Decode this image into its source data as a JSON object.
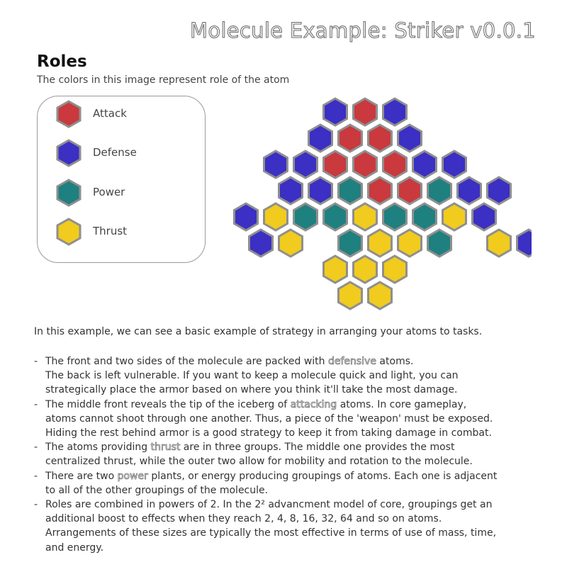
{
  "title": "Molecule Example: Striker v0.0.1",
  "roles": {
    "heading": "Roles",
    "subtitle": "The colors in this image represent role of the atom",
    "legend": [
      {
        "label": "Attack",
        "color": "#c9393d"
      },
      {
        "label": "Defense",
        "color": "#3b2fc4"
      },
      {
        "label": "Power",
        "color": "#1f8080"
      },
      {
        "label": "Thrust",
        "color": "#f1cb1d"
      }
    ]
  },
  "hex_border": "#8f8f8f",
  "molecule": {
    "rows": [
      "...DAD....",
      "..DAAD....",
      ".DDAAADD..",
      ".DDPAAPDD.",
      "DTPPTPPTD.",
      "DT.PTTP.TD",
      "...TTT....",
      "...TT....."
    ]
  },
  "intro": "In this example, we can see a basic example of strategy in arranging your atoms to tasks.",
  "bullets": [
    {
      "lines": [
        [
          {
            "t": "The front and two sides of the molecule are packed with "
          },
          {
            "t": "defensive",
            "hl": true
          },
          {
            "t": " atoms."
          }
        ],
        [
          {
            "t": "The back is left vulnerable.  If you want to keep a molecule quick and light, you can"
          }
        ],
        [
          {
            "t": "strategically place the armor based on where you think it'll take the most damage."
          }
        ]
      ]
    },
    {
      "lines": [
        [
          {
            "t": "The middle front reveals the tip of the iceberg of "
          },
          {
            "t": "attacking",
            "hl": true
          },
          {
            "t": " atoms.  In core gameplay,"
          }
        ],
        [
          {
            "t": "atoms cannot shoot through one another.  Thus, a piece of the 'weapon' must be exposed."
          }
        ],
        [
          {
            "t": "Hiding the rest behind armor is a good strategy to keep it from taking damage in combat."
          }
        ]
      ]
    },
    {
      "lines": [
        [
          {
            "t": "The atoms providing "
          },
          {
            "t": "thrust",
            "hl": true
          },
          {
            "t": " are in three groups.  The middle one provides the most"
          }
        ],
        [
          {
            "t": "centralized thrust, while the outer two allow for mobility and rotation to the molecule."
          }
        ]
      ]
    },
    {
      "lines": [
        [
          {
            "t": "There are two "
          },
          {
            "t": "power",
            "hl": true
          },
          {
            "t": " plants, or energy producing groupings of atoms.  Each one is adjacent"
          }
        ],
        [
          {
            "t": "to all of the other groupings of the molecule."
          }
        ]
      ]
    },
    {
      "lines": [
        [
          {
            "t": "Roles are combined in powers of 2.  In the 2² advancment model of core, groupings get an"
          }
        ],
        [
          {
            "t": "additional boost to effects when they reach 2, 4, 8, 16, 32, 64 and so on atoms."
          }
        ],
        [
          {
            "t": "Arrangements of these sizes are typically the most effective in terms of use of mass, time,"
          }
        ],
        [
          {
            "t": "and energy."
          }
        ]
      ]
    }
  ]
}
